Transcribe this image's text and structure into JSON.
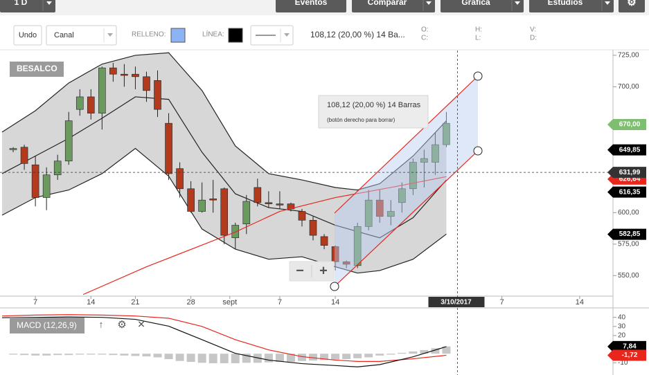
{
  "toolbar": {
    "buttons": [
      "1 D",
      "Eventos",
      "Comparar",
      "Gráfica",
      "Estudios"
    ],
    "settings_icon": "⚙"
  },
  "drawing_bar": {
    "undo": "Undo",
    "tool": "Canal",
    "fill_label": "RELLENO:",
    "fill_color": "#8cb4f5",
    "line_label": "LÍNEA:",
    "line_color": "#000000",
    "measure": "108,12 (20,00 %) 14 Ba...",
    "ohlc_labels": [
      "O:",
      "C:",
      "H:",
      "L:",
      "V:",
      "D:"
    ]
  },
  "chart_data": [
    {
      "type": "candlestick",
      "title": "BESALCO",
      "open": [
        650,
        652,
        638,
        612,
        630,
        641,
        682,
        692,
        679,
        715,
        710,
        710,
        708,
        705,
        671,
        635,
        619,
        601,
        611,
        619,
        580,
        591,
        620,
        608,
        607,
        607,
        601,
        594,
        581,
        573,
        561,
        558,
        589,
        610,
        597,
        608,
        619,
        640,
        640,
        654
      ],
      "high": [
        652,
        654,
        645,
        636,
        646,
        680,
        698,
        698,
        716,
        719,
        718,
        716,
        712,
        713,
        679,
        640,
        625,
        624,
        626,
        620,
        592,
        614,
        627,
        617,
        617,
        608,
        603,
        597,
        583,
        574,
        562,
        592,
        618,
        618,
        610,
        624,
        643,
        650,
        664,
        680
      ],
      "low": [
        648,
        634,
        605,
        602,
        626,
        638,
        677,
        674,
        666,
        704,
        700,
        698,
        688,
        676,
        626,
        612,
        600,
        600,
        600,
        575,
        571,
        583,
        605,
        604,
        603,
        601,
        589,
        578,
        571,
        554,
        556,
        556,
        586,
        592,
        590,
        600,
        614,
        620,
        630,
        652
      ],
      "close": [
        651,
        639,
        612,
        630,
        641,
        673,
        692,
        679,
        715,
        710,
        709,
        708,
        697,
        682,
        631,
        619,
        601,
        610,
        610,
        582,
        590,
        609,
        608,
        607,
        606,
        603,
        594,
        582,
        574,
        561,
        559,
        589,
        610,
        597,
        601,
        619,
        640,
        643,
        654,
        671
      ],
      "up_color": "#6b9a5e",
      "down_color": "#b33a1c",
      "xlim": [
        -1,
        54
      ],
      "xticks": [
        {
          "value": 2,
          "label": "7"
        },
        {
          "value": 7,
          "label": "14"
        },
        {
          "value": 11,
          "label": "21"
        },
        {
          "value": 16,
          "label": "28"
        },
        {
          "value": 19.5,
          "label": "sept"
        },
        {
          "value": 24,
          "label": "7"
        },
        {
          "value": 29,
          "label": "14"
        },
        {
          "value": 44,
          "label": "7"
        },
        {
          "value": 51,
          "label": "14"
        }
      ],
      "ylim": [
        533.7,
        728.8
      ],
      "yticks": [
        {
          "value": 725,
          "label": "725,00"
        },
        {
          "value": 700,
          "label": "700,00"
        },
        {
          "value": 600,
          "label": "600,00"
        },
        {
          "value": 575,
          "label": "575,00"
        },
        {
          "value": 550,
          "label": "550,00"
        }
      ],
      "bands": {
        "color": "#222222",
        "fill": "#cdcdcd",
        "x": [
          -1,
          2,
          5,
          8,
          11,
          14,
          17,
          20,
          23,
          26,
          29,
          31,
          33,
          36,
          39
        ],
        "upper": [
          664,
          681,
          703,
          718,
          725,
          727,
          697,
          653,
          631,
          626,
          620,
          618,
          623,
          645,
          673
        ],
        "middle": [
          631,
          645,
          659,
          675,
          692,
          690,
          648,
          615,
          604,
          601,
          590,
          585,
          580,
          596,
          626
        ],
        "lower": [
          598,
          612,
          618,
          631,
          651,
          629,
          587,
          571,
          563,
          565,
          557,
          552,
          554,
          563,
          583
        ]
      },
      "moving_average": {
        "color": "#e8261c",
        "x": [
          6.3,
          12,
          20,
          24,
          29,
          34,
          39
        ],
        "values": [
          535,
          557,
          584.6,
          601,
          612,
          620,
          628.6
        ]
      },
      "price_tags": [
        {
          "value": 670,
          "label": "670,00",
          "color": "#7dbf6e"
        },
        {
          "value": 649.85,
          "label": "649,85",
          "color": "#000000"
        },
        {
          "value": 626.64,
          "label": "626,64",
          "color": "#e8261c"
        },
        {
          "value": 616.35,
          "label": "616,35",
          "color": "#000000"
        },
        {
          "value": 582.85,
          "label": "582,85",
          "color": "#000000"
        }
      ],
      "crosshair": {
        "x": 40,
        "x_label": "3/10/2017",
        "y": 631.99,
        "y_label": "631,99",
        "color": "#333333"
      },
      "channel_tooltip": [
        "108,12 (20,00 %) 14 Barras",
        "(botón derecho para borrar)"
      ],
      "zoom": [
        "−",
        "+"
      ]
    },
    {
      "type": "macd",
      "title": "MACD (12,26,9)",
      "icons": [
        "↑",
        "⚙",
        "✕"
      ],
      "ylim": [
        -21.9,
        50.4
      ],
      "yticks": [
        40,
        30,
        20,
        -10
      ],
      "histogram": {
        "color": "#c6c6c6",
        "values": [
          -1,
          -1.5,
          -2,
          -2,
          -1.5,
          -1.5,
          -1,
          -1,
          -1,
          -1.5,
          -2,
          -2.5,
          -3,
          -4,
          -6,
          -8,
          -9,
          -10,
          -10.5,
          -10.5,
          -10.5,
          -10,
          -10,
          -9.5,
          -9,
          -9,
          -8,
          -7.5,
          -7,
          -6.5,
          -6,
          -5,
          -4,
          -2,
          -1,
          1,
          2.5,
          4,
          6,
          8
        ]
      },
      "macd": {
        "color": "#111111",
        "x": [
          -1,
          2,
          5,
          8,
          11,
          14,
          17,
          20,
          23,
          26,
          29,
          31,
          33,
          36,
          39
        ],
        "values": [
          39.6,
          40,
          40.4,
          40,
          37.8,
          30.3,
          15.4,
          0.4,
          -7,
          -10.9,
          -13,
          -14.5,
          -12,
          -3.4,
          7.8
        ]
      },
      "signal": {
        "color": "#e8261c",
        "x": [
          -1,
          2,
          5,
          8,
          11,
          14,
          17,
          20,
          23,
          26,
          29,
          31,
          33,
          36,
          39
        ],
        "values": [
          41.5,
          42.5,
          43,
          42.5,
          41.5,
          39,
          30,
          15.4,
          4.2,
          -3.2,
          -7,
          -8.5,
          -8.5,
          -5.6,
          -1.7
        ]
      },
      "tags": [
        {
          "value": 7.84,
          "label": "7,84",
          "color": "#000000"
        },
        {
          "value": -1.72,
          "label": "-1,72",
          "color": "#e8261c"
        }
      ]
    }
  ]
}
